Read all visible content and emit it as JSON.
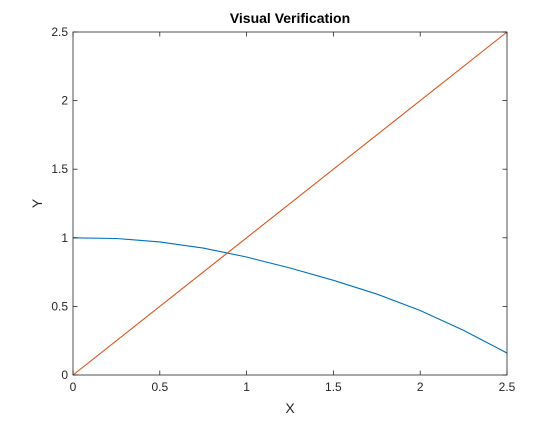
{
  "chart_data": {
    "type": "line",
    "title": "Visual Verification",
    "xlabel": "X",
    "ylabel": "Y",
    "xlim": [
      0,
      2.5
    ],
    "ylim": [
      0,
      2.5
    ],
    "xticks": [
      0,
      0.5,
      1,
      1.5,
      2,
      2.5
    ],
    "xtick_labels": [
      "0",
      "0.5",
      "1",
      "1.5",
      "2",
      "2.5"
    ],
    "yticks": [
      0,
      0.5,
      1,
      1.5,
      2,
      2.5
    ],
    "ytick_labels": [
      "0",
      "0.5",
      "1",
      "1.5",
      "2",
      "2.5"
    ],
    "grid": false,
    "box": true,
    "series": [
      {
        "color": "#0072BD",
        "x": [
          0,
          0.25,
          0.5,
          0.75,
          1.0,
          1.25,
          1.5,
          1.75,
          2.0,
          2.25,
          2.5
        ],
        "y": [
          1.0,
          0.995,
          0.97,
          0.925,
          0.86,
          0.78,
          0.69,
          0.59,
          0.47,
          0.325,
          0.16
        ]
      },
      {
        "color": "#D95319",
        "x": [
          0,
          2.5
        ],
        "y": [
          0,
          2.5
        ]
      }
    ]
  }
}
